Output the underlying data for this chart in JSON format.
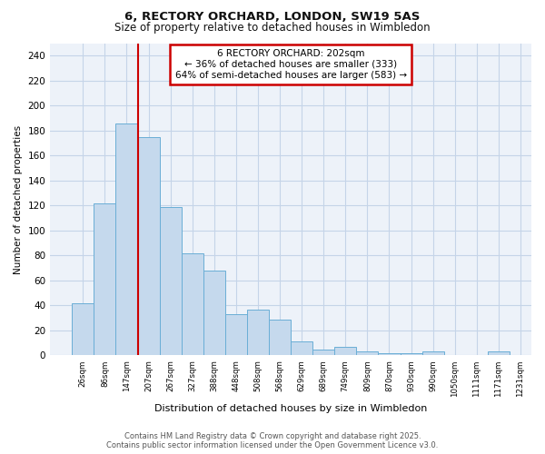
{
  "title1": "6, RECTORY ORCHARD, LONDON, SW19 5AS",
  "title2": "Size of property relative to detached houses in Wimbledon",
  "xlabel": "Distribution of detached houses by size in Wimbledon",
  "ylabel": "Number of detached properties",
  "bar_values": [
    42,
    122,
    186,
    175,
    119,
    82,
    68,
    33,
    37,
    29,
    11,
    5,
    7,
    3,
    2,
    2,
    3,
    0,
    0,
    3
  ],
  "bin_labels": [
    "26sqm",
    "86sqm",
    "147sqm",
    "207sqm",
    "267sqm",
    "327sqm",
    "388sqm",
    "448sqm",
    "508sqm",
    "568sqm",
    "629sqm",
    "689sqm",
    "749sqm",
    "809sqm",
    "870sqm",
    "930sqm",
    "990sqm",
    "1050sqm",
    "1111sqm",
    "1171sqm",
    "1231sqm"
  ],
  "bar_color": "#c5d9ed",
  "bar_edge_color": "#6aaed6",
  "vline_x": 3,
  "vline_color": "#cc0000",
  "annotation_title": "6 RECTORY ORCHARD: 202sqm",
  "annotation_line1": "← 36% of detached houses are smaller (333)",
  "annotation_line2": "64% of semi-detached houses are larger (583) →",
  "annotation_box_color": "#cc0000",
  "ylim": [
    0,
    250
  ],
  "yticks": [
    0,
    20,
    40,
    60,
    80,
    100,
    120,
    140,
    160,
    180,
    200,
    220,
    240
  ],
  "footer1": "Contains HM Land Registry data © Crown copyright and database right 2025.",
  "footer2": "Contains public sector information licensed under the Open Government Licence v3.0.",
  "plot_bg_color": "#edf2f9",
  "fig_bg_color": "#ffffff",
  "grid_color": "#c5d4e8"
}
